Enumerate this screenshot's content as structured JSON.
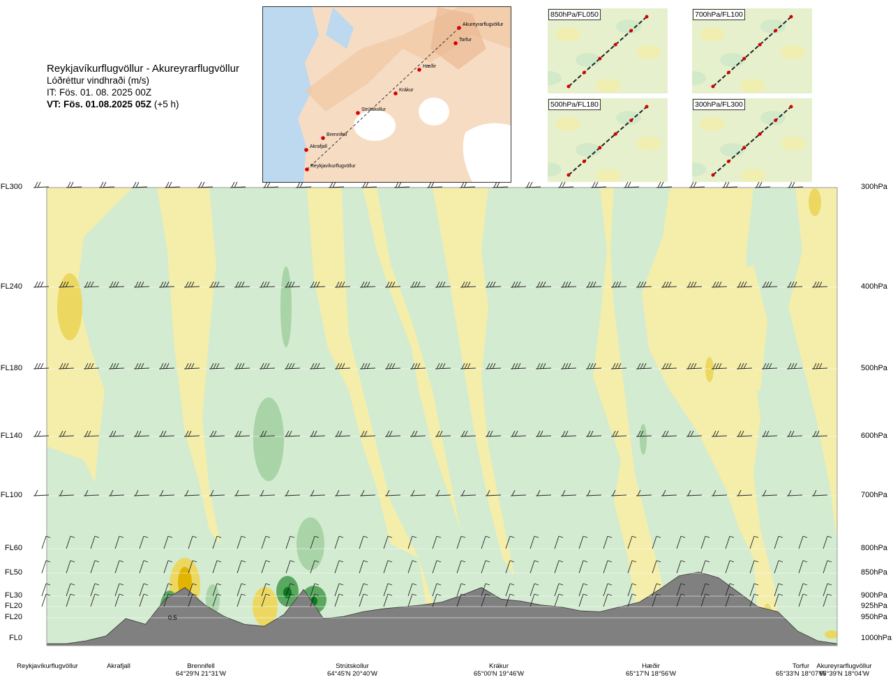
{
  "header": {
    "title": "Reykjavíkurflugvöllur - Akureyrarflugvöllur",
    "subtitle": "Lóðréttur vindhraði (m/s)",
    "issue_time": "IT: Fös. 01. 08. 2025 00Z",
    "valid_time": "VT: Fös. 01.08.2025 05Z",
    "valid_offset": "(+5 h)"
  },
  "map": {
    "places": [
      "Akureyrarflugvöllur",
      "Torfur",
      "Hæðir",
      "Krákur",
      "Strútskollur",
      "Brennifell",
      "Akrafjall",
      "Reykjavíkurflugvöllur"
    ]
  },
  "panels": [
    {
      "label": "850hPa/FL050"
    },
    {
      "label": "700hPa/FL100"
    },
    {
      "label": "500hPa/FL180"
    },
    {
      "label": "300hPa/FL300"
    }
  ],
  "levels": [
    {
      "fl": "FL300",
      "hpa": "300hPa"
    },
    {
      "fl": "FL240",
      "hpa": "400hPa"
    },
    {
      "fl": "FL180",
      "hpa": "500hPa"
    },
    {
      "fl": "FL140",
      "hpa": "600hPa"
    },
    {
      "fl": "FL100",
      "hpa": "700hPa"
    },
    {
      "fl": "FL60",
      "hpa": "800hPa"
    },
    {
      "fl": "FL50",
      "hpa": "850hPa"
    },
    {
      "fl": "FL30",
      "hpa": "900hPa"
    },
    {
      "fl": "FL20",
      "hpa": "925hPa"
    },
    {
      "fl": "FL20",
      "hpa": "950hPa"
    },
    {
      "fl": "FL0",
      "hpa": "1000hPa"
    }
  ],
  "waypoints": [
    {
      "name": "Reykjavíkurflugvöllur",
      "coord": ""
    },
    {
      "name": "Akrafjall",
      "coord": ""
    },
    {
      "name": "Brennifell",
      "coord": "64°29'N 21°31'W"
    },
    {
      "name": "Strútskollur",
      "coord": "64°45'N 20°40'W"
    },
    {
      "name": "Krákur",
      "coord": "65°00'N 19°46'W"
    },
    {
      "name": "Hæðir",
      "coord": "65°17'N 18°56'W"
    },
    {
      "name": "Torfur",
      "coord": "65°33'N 18°07'W"
    },
    {
      "name": "Akureyrarflugvöllur",
      "coord": "65°39'N 18°04'W"
    }
  ],
  "contour_label": "0.5",
  "colors": {
    "strong_down": "#0a7a1a",
    "down": "#5aa860",
    "weak_down": "#a8d4a8",
    "near_zero_down": "#d3ebd0",
    "zero": "#fbfbe6",
    "near_zero_up": "#f4eeaa",
    "up": "#ecd860",
    "strong_up": "#e0b400",
    "terrain": "#808080",
    "route": "#d40000"
  },
  "chart_data": {
    "type": "heatmap",
    "title": "Reykjavíkurflugvöllur - Akureyrarflugvöllur",
    "variable": "Lóðréttur vindhraði (m/s)",
    "x_waypoints": [
      "Reykjavíkurflugvöllur",
      "Akrafjall",
      "Brennifell",
      "Strútskollur",
      "Krákur",
      "Hæðir",
      "Torfur",
      "Akureyrarflugvöllur"
    ],
    "y_levels_hpa": [
      300,
      400,
      500,
      600,
      700,
      800,
      850,
      900,
      925,
      950,
      1000
    ],
    "y_levels_fl": [
      "FL300",
      "FL240",
      "FL180",
      "FL140",
      "FL100",
      "FL60",
      "FL50",
      "FL30",
      "FL20",
      "FL20",
      "FL0"
    ],
    "labeled_contour": 0.5,
    "terrain_profile_fraction_of_0_to_FL60": [
      0.02,
      0.02,
      0.05,
      0.1,
      0.28,
      0.22,
      0.48,
      0.6,
      0.42,
      0.3,
      0.22,
      0.2,
      0.32,
      0.58,
      0.28,
      0.3,
      0.35,
      0.38,
      0.4,
      0.42,
      0.45,
      0.52,
      0.6,
      0.48,
      0.46,
      0.42,
      0.4,
      0.36,
      0.35,
      0.4,
      0.45,
      0.58,
      0.72,
      0.76,
      0.7,
      0.55,
      0.4,
      0.35,
      0.15,
      0.05,
      0.02
    ]
  }
}
